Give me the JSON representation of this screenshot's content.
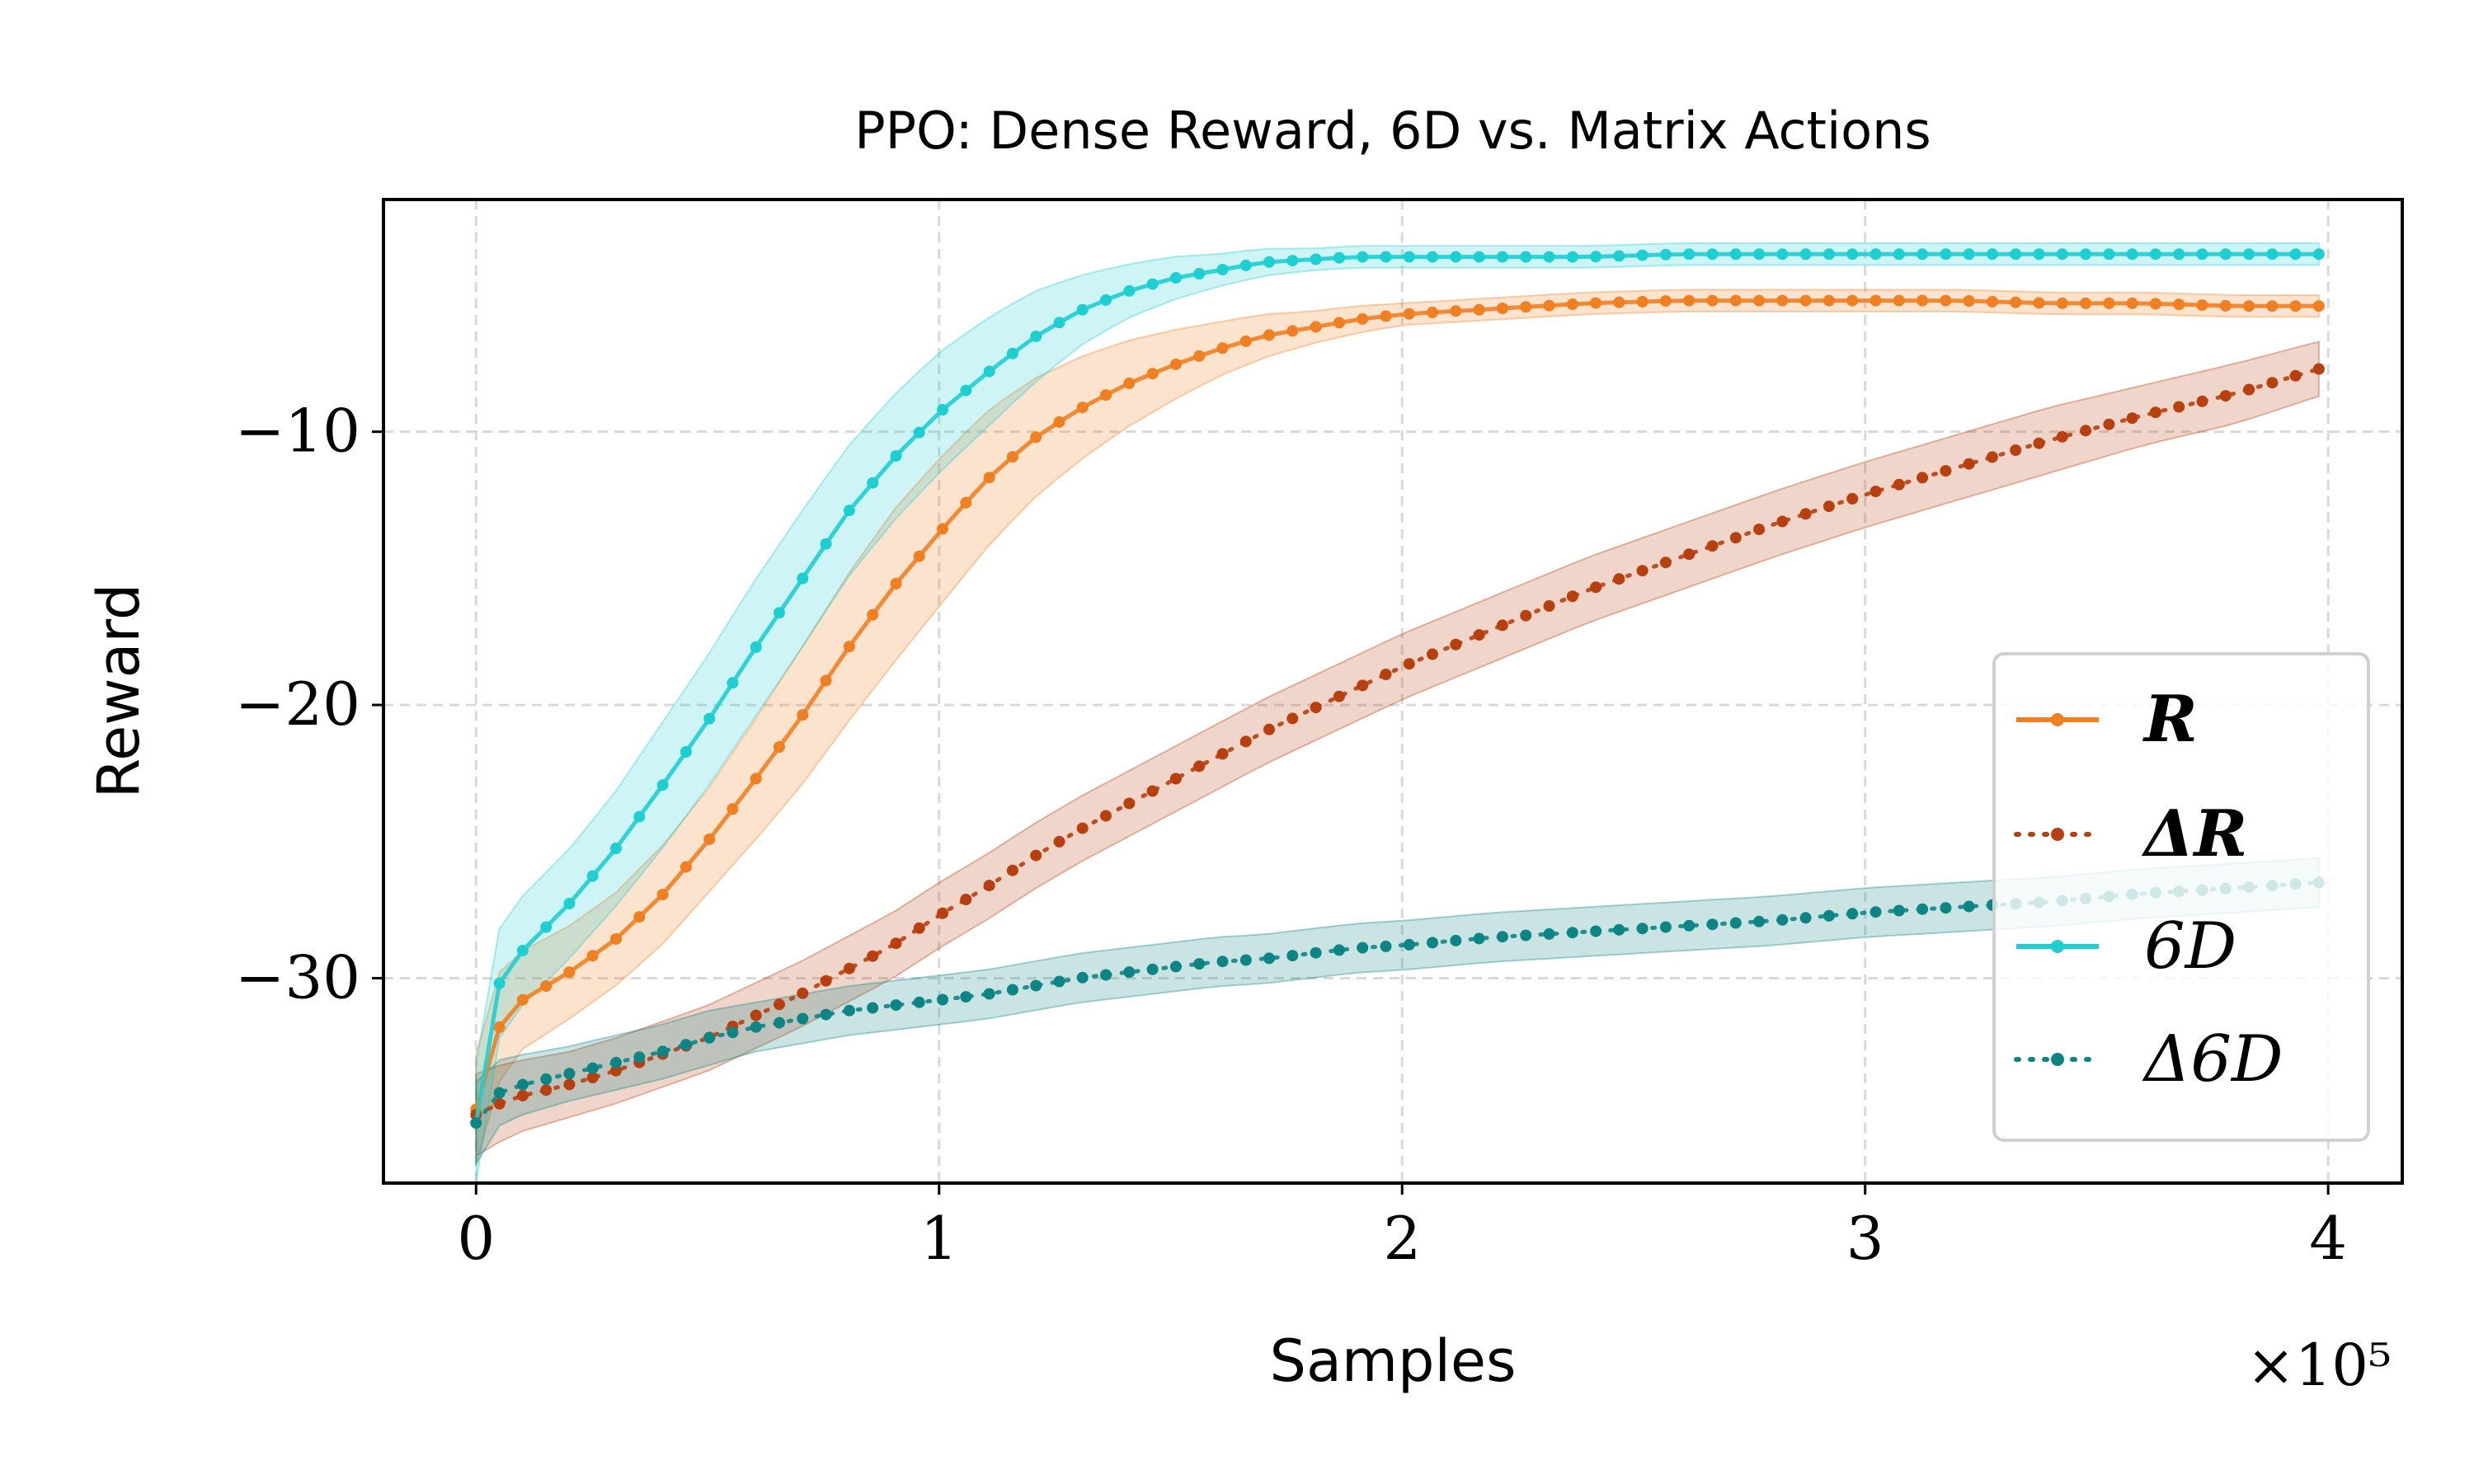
{
  "chart_data": {
    "type": "line",
    "title": "PPO: Dense Reward, 6D vs. Matrix Actions",
    "xlabel": "Samples",
    "ylabel": "Reward",
    "x_multiplier_label": "×10⁵",
    "xlim": [
      -0.2,
      4.16
    ],
    "ylim": [
      -37.5,
      -1.5
    ],
    "xticks": [
      0,
      1,
      2,
      3,
      4
    ],
    "xtick_labels": [
      "0",
      "1",
      "2",
      "3",
      "4"
    ],
    "yticks": [
      -10,
      -20,
      -30
    ],
    "ytick_labels": [
      "−10",
      "−20",
      "−30"
    ],
    "grid": true,
    "legend_position": "center-right",
    "x": [
      0,
      0.05,
      0.1,
      0.2,
      0.3,
      0.4,
      0.5,
      0.6,
      0.7,
      0.8,
      0.9,
      1.0,
      1.1,
      1.2,
      1.3,
      1.4,
      1.5,
      1.6,
      1.7,
      1.8,
      1.9,
      2.0,
      2.2,
      2.4,
      2.6,
      2.8,
      3.0,
      3.2,
      3.4,
      3.6,
      3.8,
      3.98
    ],
    "series": [
      {
        "name": "R",
        "legend_label": "R",
        "color": "#f07f22",
        "style": "solid",
        "values": [
          -34.8,
          -31.8,
          -30.8,
          -29.8,
          -28.6,
          -27.0,
          -25.0,
          -22.8,
          -20.5,
          -18.0,
          -15.7,
          -13.7,
          -11.8,
          -10.3,
          -9.2,
          -8.3,
          -7.6,
          -7.0,
          -6.5,
          -6.2,
          -5.9,
          -5.7,
          -5.5,
          -5.3,
          -5.2,
          -5.2,
          -5.2,
          -5.2,
          -5.3,
          -5.3,
          -5.4,
          -5.4
        ],
        "band": [
          2.0,
          2.0,
          1.8,
          1.7,
          1.7,
          1.8,
          1.9,
          2.2,
          2.5,
          2.7,
          2.8,
          2.7,
          2.5,
          2.2,
          1.9,
          1.6,
          1.3,
          1.0,
          0.8,
          0.6,
          0.5,
          0.4,
          0.4,
          0.4,
          0.4,
          0.4,
          0.4,
          0.4,
          0.4,
          0.4,
          0.4,
          0.4
        ]
      },
      {
        "name": "ΔR",
        "legend_label": "ΔR",
        "color": "#b8400f",
        "style": "dotted",
        "values": [
          -35.0,
          -34.6,
          -34.3,
          -33.9,
          -33.4,
          -32.8,
          -32.2,
          -31.4,
          -30.6,
          -29.7,
          -28.8,
          -27.7,
          -26.7,
          -25.6,
          -24.6,
          -23.7,
          -22.8,
          -21.9,
          -21.0,
          -20.2,
          -19.4,
          -18.6,
          -17.2,
          -15.8,
          -14.6,
          -13.4,
          -12.3,
          -11.3,
          -10.3,
          -9.4,
          -8.6,
          -7.7
        ],
        "band": [
          1.5,
          1.4,
          1.3,
          1.2,
          1.2,
          1.2,
          1.2,
          1.2,
          1.2,
          1.2,
          1.2,
          1.2,
          1.2,
          1.2,
          1.2,
          1.2,
          1.2,
          1.2,
          1.2,
          1.2,
          1.2,
          1.2,
          1.2,
          1.2,
          1.2,
          1.2,
          1.2,
          1.2,
          1.2,
          1.1,
          1.1,
          1.0
        ]
      },
      {
        "name": "6D",
        "legend_label": "6D",
        "color": "#1ecfd1",
        "style": "solid",
        "values": [
          -35.3,
          -30.2,
          -29.0,
          -27.3,
          -25.3,
          -23.0,
          -20.6,
          -18.0,
          -15.5,
          -13.0,
          -11.0,
          -9.3,
          -7.9,
          -6.6,
          -5.6,
          -4.9,
          -4.4,
          -4.1,
          -3.8,
          -3.7,
          -3.6,
          -3.6,
          -3.6,
          -3.6,
          -3.5,
          -3.5,
          -3.5,
          -3.5,
          -3.5,
          -3.5,
          -3.5,
          -3.5
        ],
        "band": [
          2.2,
          2.0,
          2.0,
          2.0,
          2.1,
          2.3,
          2.4,
          2.5,
          2.5,
          2.4,
          2.3,
          2.2,
          2.0,
          1.7,
          1.3,
          1.0,
          0.8,
          0.6,
          0.5,
          0.4,
          0.4,
          0.4,
          0.4,
          0.4,
          0.4,
          0.4,
          0.4,
          0.4,
          0.4,
          0.4,
          0.4,
          0.4
        ]
      },
      {
        "name": "Δ6D",
        "legend_label": "Δ6D",
        "color": "#0e8585",
        "style": "dotted",
        "values": [
          -35.3,
          -34.2,
          -33.9,
          -33.5,
          -33.1,
          -32.7,
          -32.2,
          -31.8,
          -31.5,
          -31.2,
          -31.0,
          -30.8,
          -30.6,
          -30.3,
          -30.0,
          -29.8,
          -29.6,
          -29.4,
          -29.3,
          -29.1,
          -28.9,
          -28.8,
          -28.5,
          -28.3,
          -28.1,
          -27.9,
          -27.6,
          -27.4,
          -27.2,
          -26.9,
          -26.7,
          -26.5
        ],
        "band": [
          1.5,
          1.2,
          1.1,
          1.0,
          1.0,
          1.0,
          1.0,
          0.9,
          0.9,
          0.9,
          0.9,
          0.9,
          0.9,
          0.9,
          0.9,
          0.9,
          0.9,
          0.9,
          0.9,
          0.9,
          0.9,
          0.9,
          0.9,
          0.9,
          0.9,
          0.9,
          0.9,
          0.9,
          0.9,
          0.9,
          0.9,
          0.9
        ]
      }
    ]
  }
}
